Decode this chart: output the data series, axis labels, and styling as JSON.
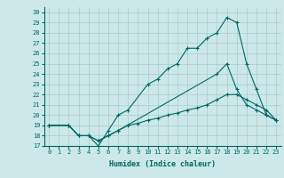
{
  "title": "",
  "xlabel": "Humidex (Indice chaleur)",
  "ylabel": "",
  "bg_color": "#cce8e8",
  "grid_color": "#aacccc",
  "line_color": "#006666",
  "xlim": [
    -0.5,
    23.5
  ],
  "ylim": [
    17,
    30.5
  ],
  "yticks": [
    17,
    18,
    19,
    20,
    21,
    22,
    23,
    24,
    25,
    26,
    27,
    28,
    29,
    30
  ],
  "xticks": [
    0,
    1,
    2,
    3,
    4,
    5,
    6,
    7,
    8,
    9,
    10,
    11,
    12,
    13,
    14,
    15,
    16,
    17,
    18,
    19,
    20,
    21,
    22,
    23
  ],
  "series": [
    {
      "x": [
        0,
        2,
        3,
        4,
        5,
        6,
        7,
        8,
        10,
        11,
        12,
        13,
        14,
        15,
        16,
        17,
        18,
        19,
        20,
        21,
        22,
        23
      ],
      "y": [
        19,
        19,
        18,
        18,
        17,
        18.5,
        20,
        20.5,
        23,
        23.5,
        24.5,
        25,
        26.5,
        26.5,
        27.5,
        28,
        29.5,
        29,
        25,
        22.5,
        20,
        19.5
      ]
    },
    {
      "x": [
        0,
        2,
        3,
        4,
        5,
        6,
        7,
        17,
        18,
        19,
        20,
        21,
        22,
        23
      ],
      "y": [
        19,
        19,
        18,
        18,
        17.5,
        18,
        18.5,
        24,
        25,
        22.5,
        21,
        20.5,
        20,
        19.5
      ]
    },
    {
      "x": [
        0,
        2,
        3,
        4,
        5,
        6,
        7,
        8,
        9,
        10,
        11,
        12,
        13,
        14,
        15,
        16,
        17,
        18,
        19,
        20,
        21,
        22,
        23
      ],
      "y": [
        19,
        19,
        18,
        18,
        17.5,
        18,
        18.5,
        19,
        19.2,
        19.5,
        19.7,
        20,
        20.2,
        20.5,
        20.7,
        21,
        21.5,
        22,
        22,
        21.5,
        21,
        20.5,
        19.5
      ]
    }
  ]
}
